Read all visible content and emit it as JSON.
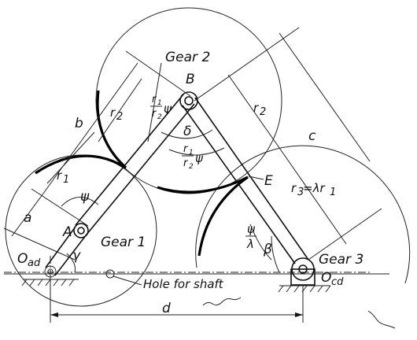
{
  "labels": {
    "gear1": "Gear 1",
    "gear2": "Gear 2",
    "gear3": "Gear 3",
    "point_A": "A",
    "point_B": "B",
    "point_E": "E",
    "O_ad": "O",
    "O_ad_sub": "ad",
    "O_cd": "O",
    "O_cd_sub": "cd",
    "a": "a",
    "b": "b",
    "c": "c",
    "d": "d",
    "r1": "r",
    "r1_sub": "1",
    "r2_left": "r",
    "r2_left_sub": "2",
    "r2_right": "r",
    "r2_right_sub": "2",
    "r3": "r",
    "r3_sub": "3",
    "r3_rhs": "=λr",
    "r3_rhs_sub": "1",
    "psi": "ψ",
    "gamma": "γ",
    "delta": "δ",
    "beta": "β",
    "frac_top_num": "r",
    "frac_top_num_sub": "1",
    "frac_top_den": "r",
    "frac_top_den_sub": "2",
    "frac_top_psi": "ψ",
    "frac_mid_num": "r",
    "frac_mid_num_sub": "1",
    "frac_mid_den": "r",
    "frac_mid_den_sub": "2",
    "frac_mid_psi": "ψ",
    "frac_low_num": "ψ",
    "frac_low_den": "λ",
    "hole_for_shaft": "Hole for shaft"
  }
}
